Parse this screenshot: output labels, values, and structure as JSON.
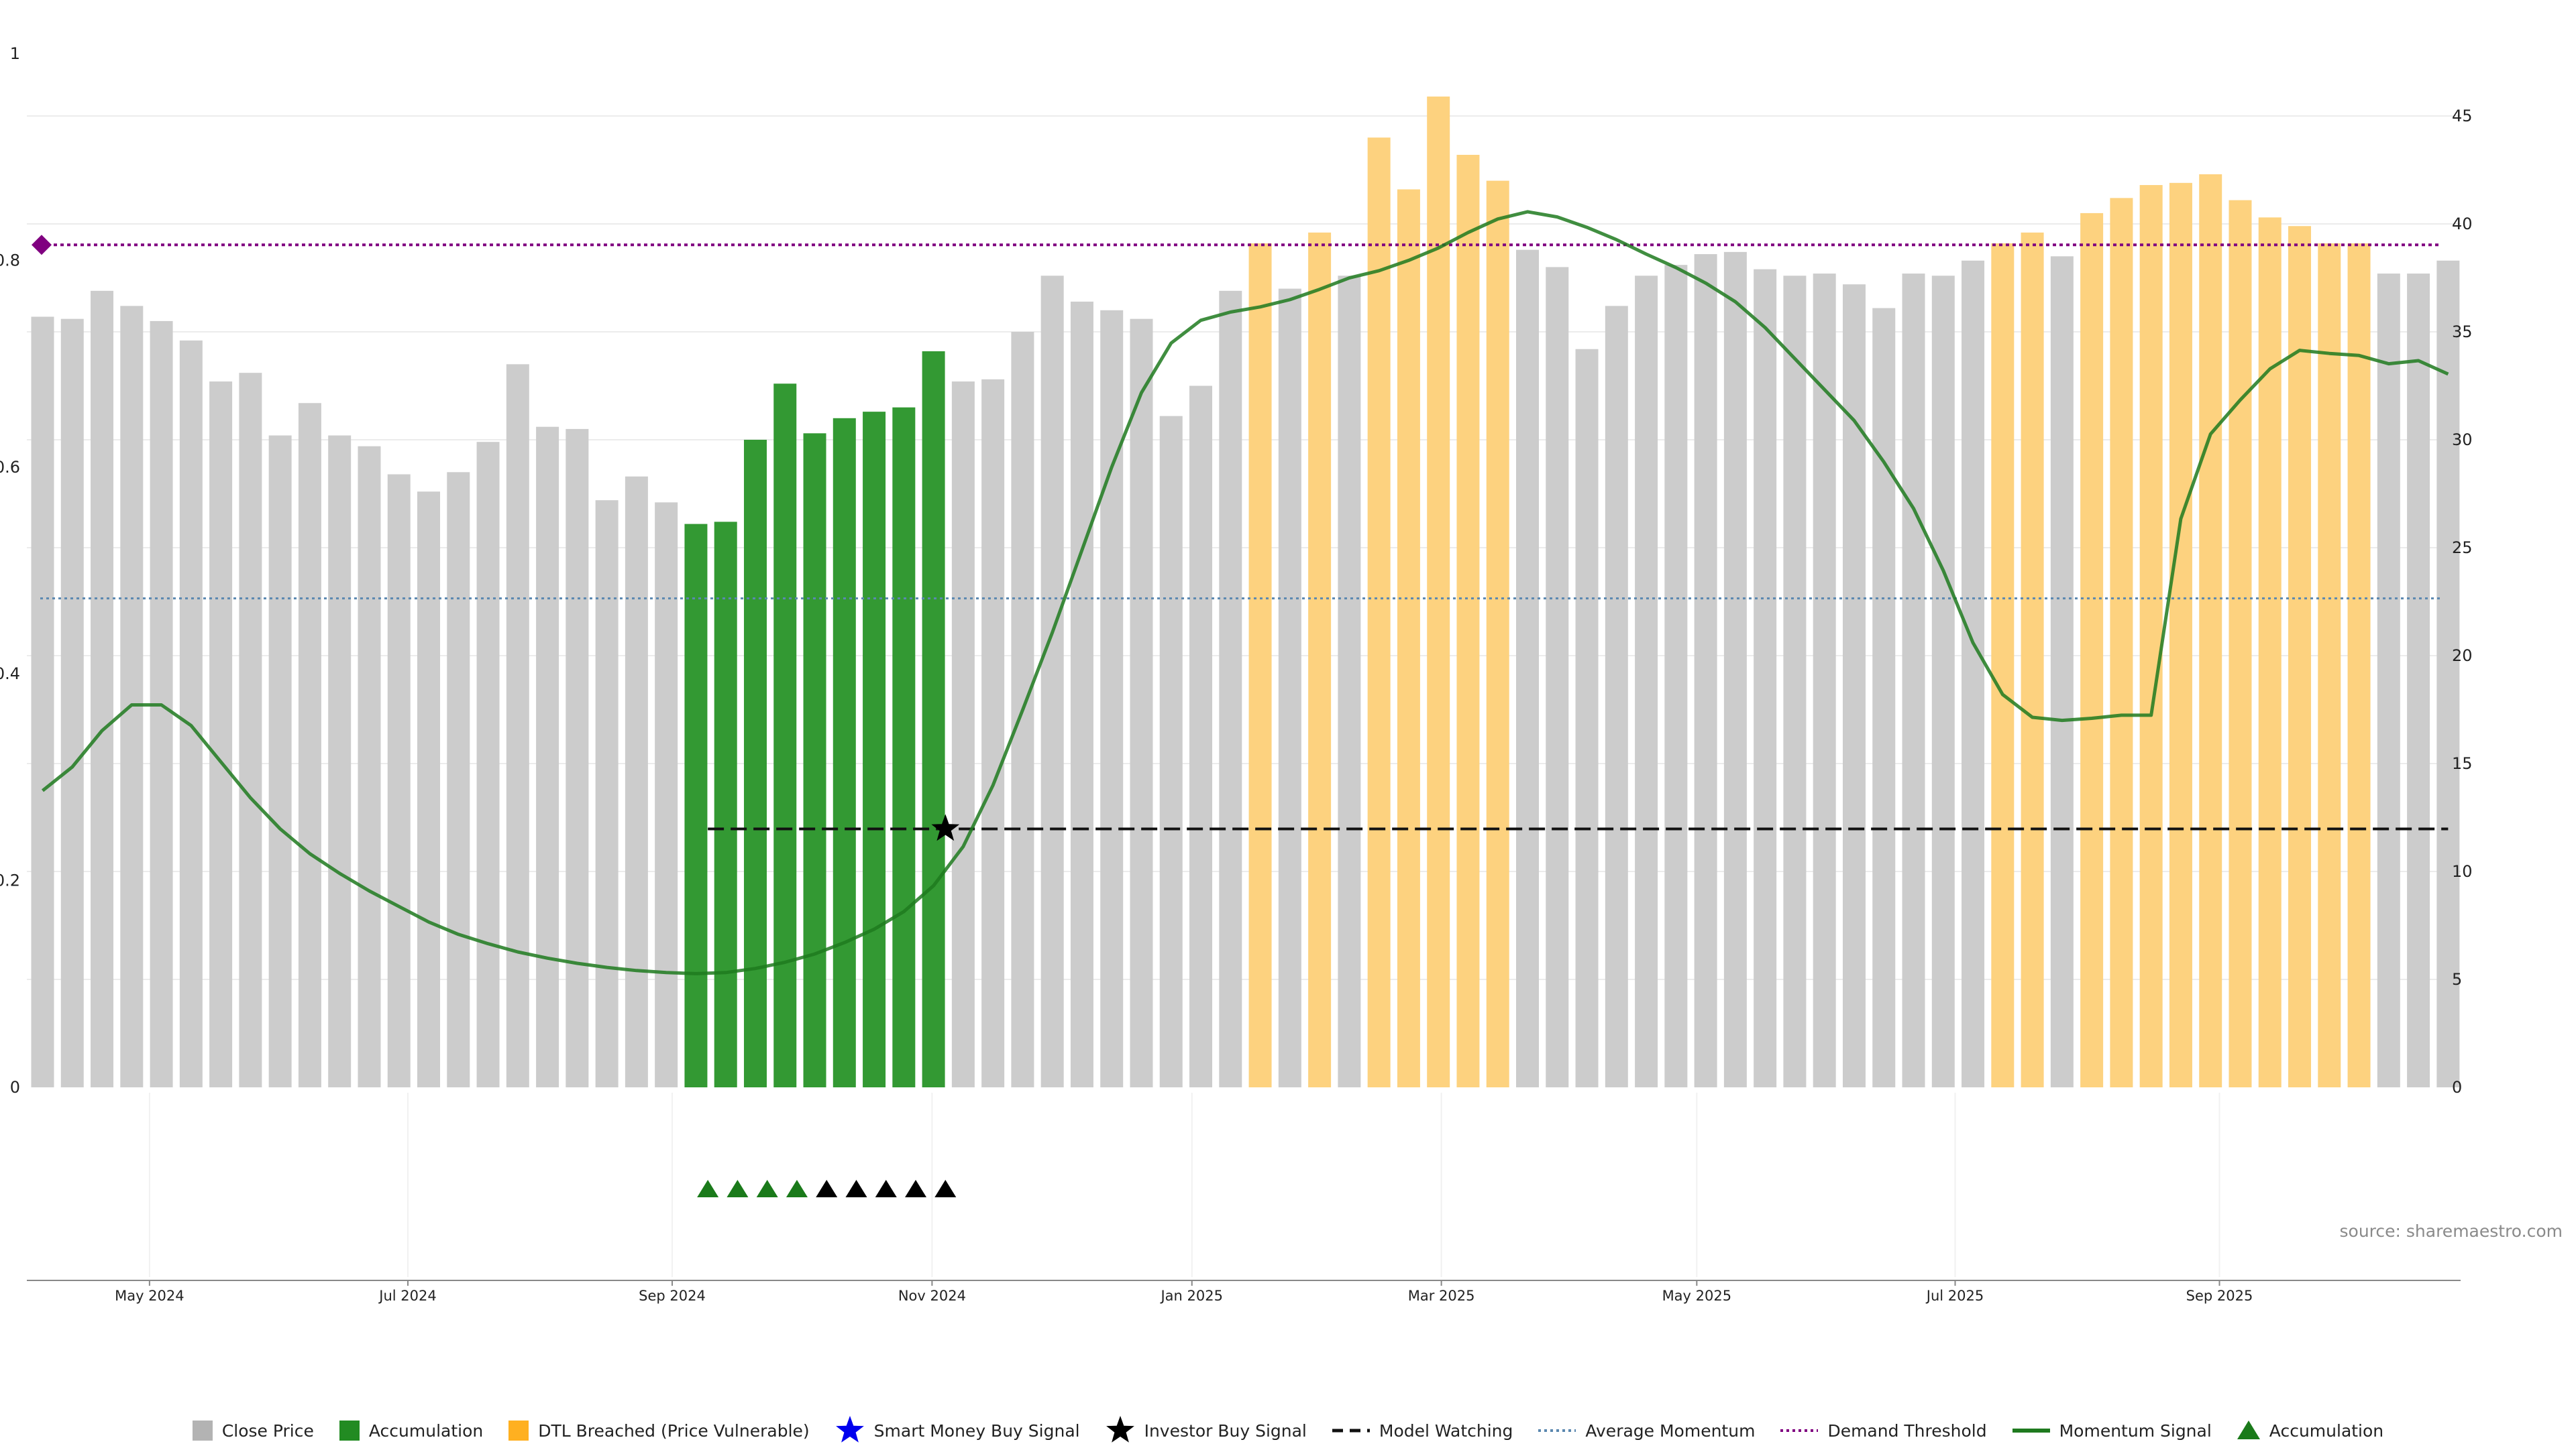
{
  "source_label": "source: sharemaestro.com",
  "colors": {
    "close": "#cccccc",
    "accumulation": "#339933",
    "dtl": "#fdd27f",
    "momentum": "#1f7a1f",
    "demand": "#800080",
    "average": "#5b88b0",
    "watching": "#111111",
    "grid": "#ececec"
  },
  "legend": [
    {
      "key": "close",
      "label": "Close Price",
      "symbol": "square",
      "color": "#b3b3b3"
    },
    {
      "key": "accumulation_bar",
      "label": "Accumulation",
      "symbol": "square",
      "color": "#228b22"
    },
    {
      "key": "dtl",
      "label": "DTL Breached (Price Vulnerable)",
      "symbol": "square",
      "color": "#ffb020"
    },
    {
      "key": "smart_money",
      "label": "Smart Money Buy Signal",
      "symbol": "star",
      "color": "#0000ee"
    },
    {
      "key": "investor",
      "label": "Investor Buy Signal",
      "symbol": "star",
      "color": "#000000"
    },
    {
      "key": "watching",
      "label": "Model Watching",
      "symbol": "dash",
      "color": "#111111"
    },
    {
      "key": "average",
      "label": "Average Momentum",
      "symbol": "dot",
      "color": "#5b88b0"
    },
    {
      "key": "demand",
      "label": "Demand Threshold",
      "symbol": "dot",
      "color": "#800080"
    },
    {
      "key": "momentum",
      "label": "Momentum Signal",
      "symbol": "line",
      "color": "#1f7a1f"
    },
    {
      "key": "accumulation_marker",
      "label": "Accumulation",
      "symbol": "triangle",
      "color": "#1a7a1a"
    }
  ],
  "chart_data": {
    "type": "bar",
    "title": "",
    "xlabel": "",
    "ylabel": "",
    "grid": true,
    "x_ticks": [
      "May 2024",
      "Jul 2024",
      "Sep 2024",
      "Nov 2024",
      "Jan 2025",
      "Mar 2025",
      "May 2025",
      "Jul 2025",
      "Sep 2025"
    ],
    "x_tick_bar_positions": [
      3.6,
      12.3,
      21.2,
      29.95,
      38.7,
      47.1,
      55.7,
      64.4,
      73.3
    ],
    "price_axis": {
      "side": "right",
      "range": [
        0,
        48
      ],
      "ticks": [
        0,
        5,
        10,
        15,
        20,
        25,
        30,
        35,
        40,
        45
      ]
    },
    "momentum_axis": {
      "side": "left",
      "range": [
        0,
        1
      ],
      "ticks": [
        0,
        0.2,
        0.4,
        0.6,
        0.8,
        1
      ],
      "tick_labels": [
        "0",
        "0.2",
        "0.4",
        "0.6",
        "0.8",
        "1"
      ]
    },
    "close_prices": [
      35.7,
      35.6,
      36.9,
      36.2,
      35.5,
      34.6,
      32.7,
      33.1,
      30.2,
      31.7,
      30.2,
      29.7,
      28.4,
      27.6,
      28.5,
      29.9,
      33.5,
      30.6,
      30.5,
      27.2,
      28.3,
      27.1,
      26.1,
      26.2,
      30.0,
      32.6,
      30.3,
      31.0,
      31.3,
      31.5,
      34.1,
      32.7,
      32.8,
      35.0,
      37.6,
      36.4,
      36.0,
      35.6,
      31.1,
      32.5,
      36.9,
      39.1,
      37.0,
      39.6,
      37.6,
      44.0,
      41.6,
      45.9,
      43.2,
      42.0,
      38.8,
      38.0,
      34.2,
      36.2,
      37.6,
      38.1,
      38.6,
      38.7,
      37.9,
      37.6,
      37.7,
      37.2,
      36.1,
      37.7,
      37.6,
      38.3,
      39.1,
      39.6,
      38.5,
      40.5,
      41.2,
      41.8,
      41.9,
      42.3,
      41.1,
      40.3,
      39.9,
      39.1,
      39.1,
      37.7,
      37.7,
      38.3
    ],
    "bar_categories": [
      "close",
      "close",
      "close",
      "close",
      "close",
      "close",
      "close",
      "close",
      "close",
      "close",
      "close",
      "close",
      "close",
      "close",
      "close",
      "close",
      "close",
      "close",
      "close",
      "close",
      "close",
      "close",
      "accumulation",
      "accumulation",
      "accumulation",
      "accumulation",
      "accumulation",
      "accumulation",
      "accumulation",
      "accumulation",
      "accumulation",
      "close",
      "close",
      "close",
      "close",
      "close",
      "close",
      "close",
      "close",
      "close",
      "close",
      "dtl",
      "close",
      "dtl",
      "close",
      "dtl",
      "dtl",
      "dtl",
      "dtl",
      "dtl",
      "close",
      "close",
      "close",
      "close",
      "close",
      "close",
      "close",
      "close",
      "close",
      "close",
      "close",
      "close",
      "close",
      "close",
      "close",
      "close",
      "dtl",
      "dtl",
      "close",
      "dtl",
      "dtl",
      "dtl",
      "dtl",
      "dtl",
      "dtl",
      "dtl",
      "dtl",
      "dtl",
      "dtl",
      "close",
      "close",
      "close"
    ],
    "momentum_signal": [
      0.287,
      0.31,
      0.345,
      0.37,
      0.37,
      0.35,
      0.315,
      0.28,
      0.25,
      0.226,
      0.207,
      0.19,
      0.175,
      0.16,
      0.148,
      0.139,
      0.131,
      0.125,
      0.12,
      0.116,
      0.113,
      0.111,
      0.11,
      0.111,
      0.115,
      0.121,
      0.129,
      0.14,
      0.153,
      0.17,
      0.195,
      0.233,
      0.292,
      0.365,
      0.44,
      0.52,
      0.6,
      0.672,
      0.72,
      0.742,
      0.75,
      0.755,
      0.762,
      0.772,
      0.783,
      0.79,
      0.8,
      0.812,
      0.827,
      0.84,
      0.847,
      0.842,
      0.832,
      0.82,
      0.806,
      0.793,
      0.778,
      0.76,
      0.735,
      0.705,
      0.675,
      0.645,
      0.605,
      0.56,
      0.5,
      0.43,
      0.38,
      0.358,
      0.355,
      0.357,
      0.36,
      0.36,
      0.55,
      0.632,
      0.665,
      0.695,
      0.713,
      0.71,
      0.708,
      0.7,
      0.703,
      0.69
    ],
    "demand_threshold": 0.815,
    "average_momentum": 0.473,
    "model_watching": {
      "level": 0.25,
      "from_bar": 22.4,
      "to_bar": 81
    },
    "accumulation_markers": {
      "bars": [
        22.4,
        23.4,
        24.4,
        25.4
      ],
      "color": "#1a7a1a"
    },
    "investor_buy_markers": {
      "bars": [
        26.4,
        27.4,
        28.4,
        29.4,
        30.4
      ],
      "color": "#000000"
    },
    "investor_buy_signal": {
      "bar": 30.4,
      "value": 0.25
    }
  }
}
